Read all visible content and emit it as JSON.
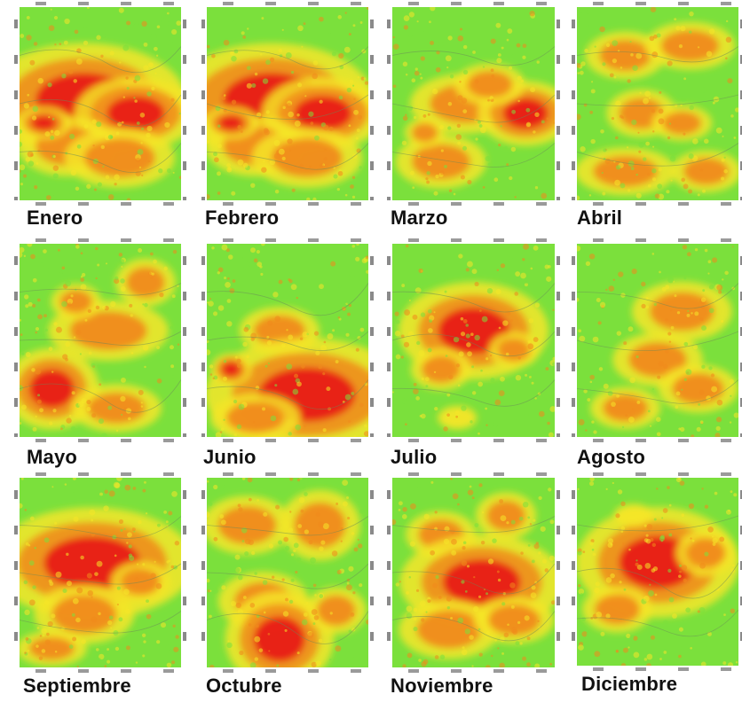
{
  "panels": [
    {
      "label": "Enero"
    },
    {
      "label": "Febrero"
    },
    {
      "label": "Marzo"
    },
    {
      "label": "Abril"
    },
    {
      "label": "Mayo"
    },
    {
      "label": "Junio"
    },
    {
      "label": "Julio"
    },
    {
      "label": "Agosto"
    },
    {
      "label": "Septiembre"
    },
    {
      "label": "Octubre"
    },
    {
      "label": "Noviembre"
    },
    {
      "label": "Diciembre"
    }
  ],
  "colors": {
    "low": "#7be03c",
    "mid": "#f5e628",
    "high": "#f08a1c",
    "peak": "#e81b12"
  }
}
